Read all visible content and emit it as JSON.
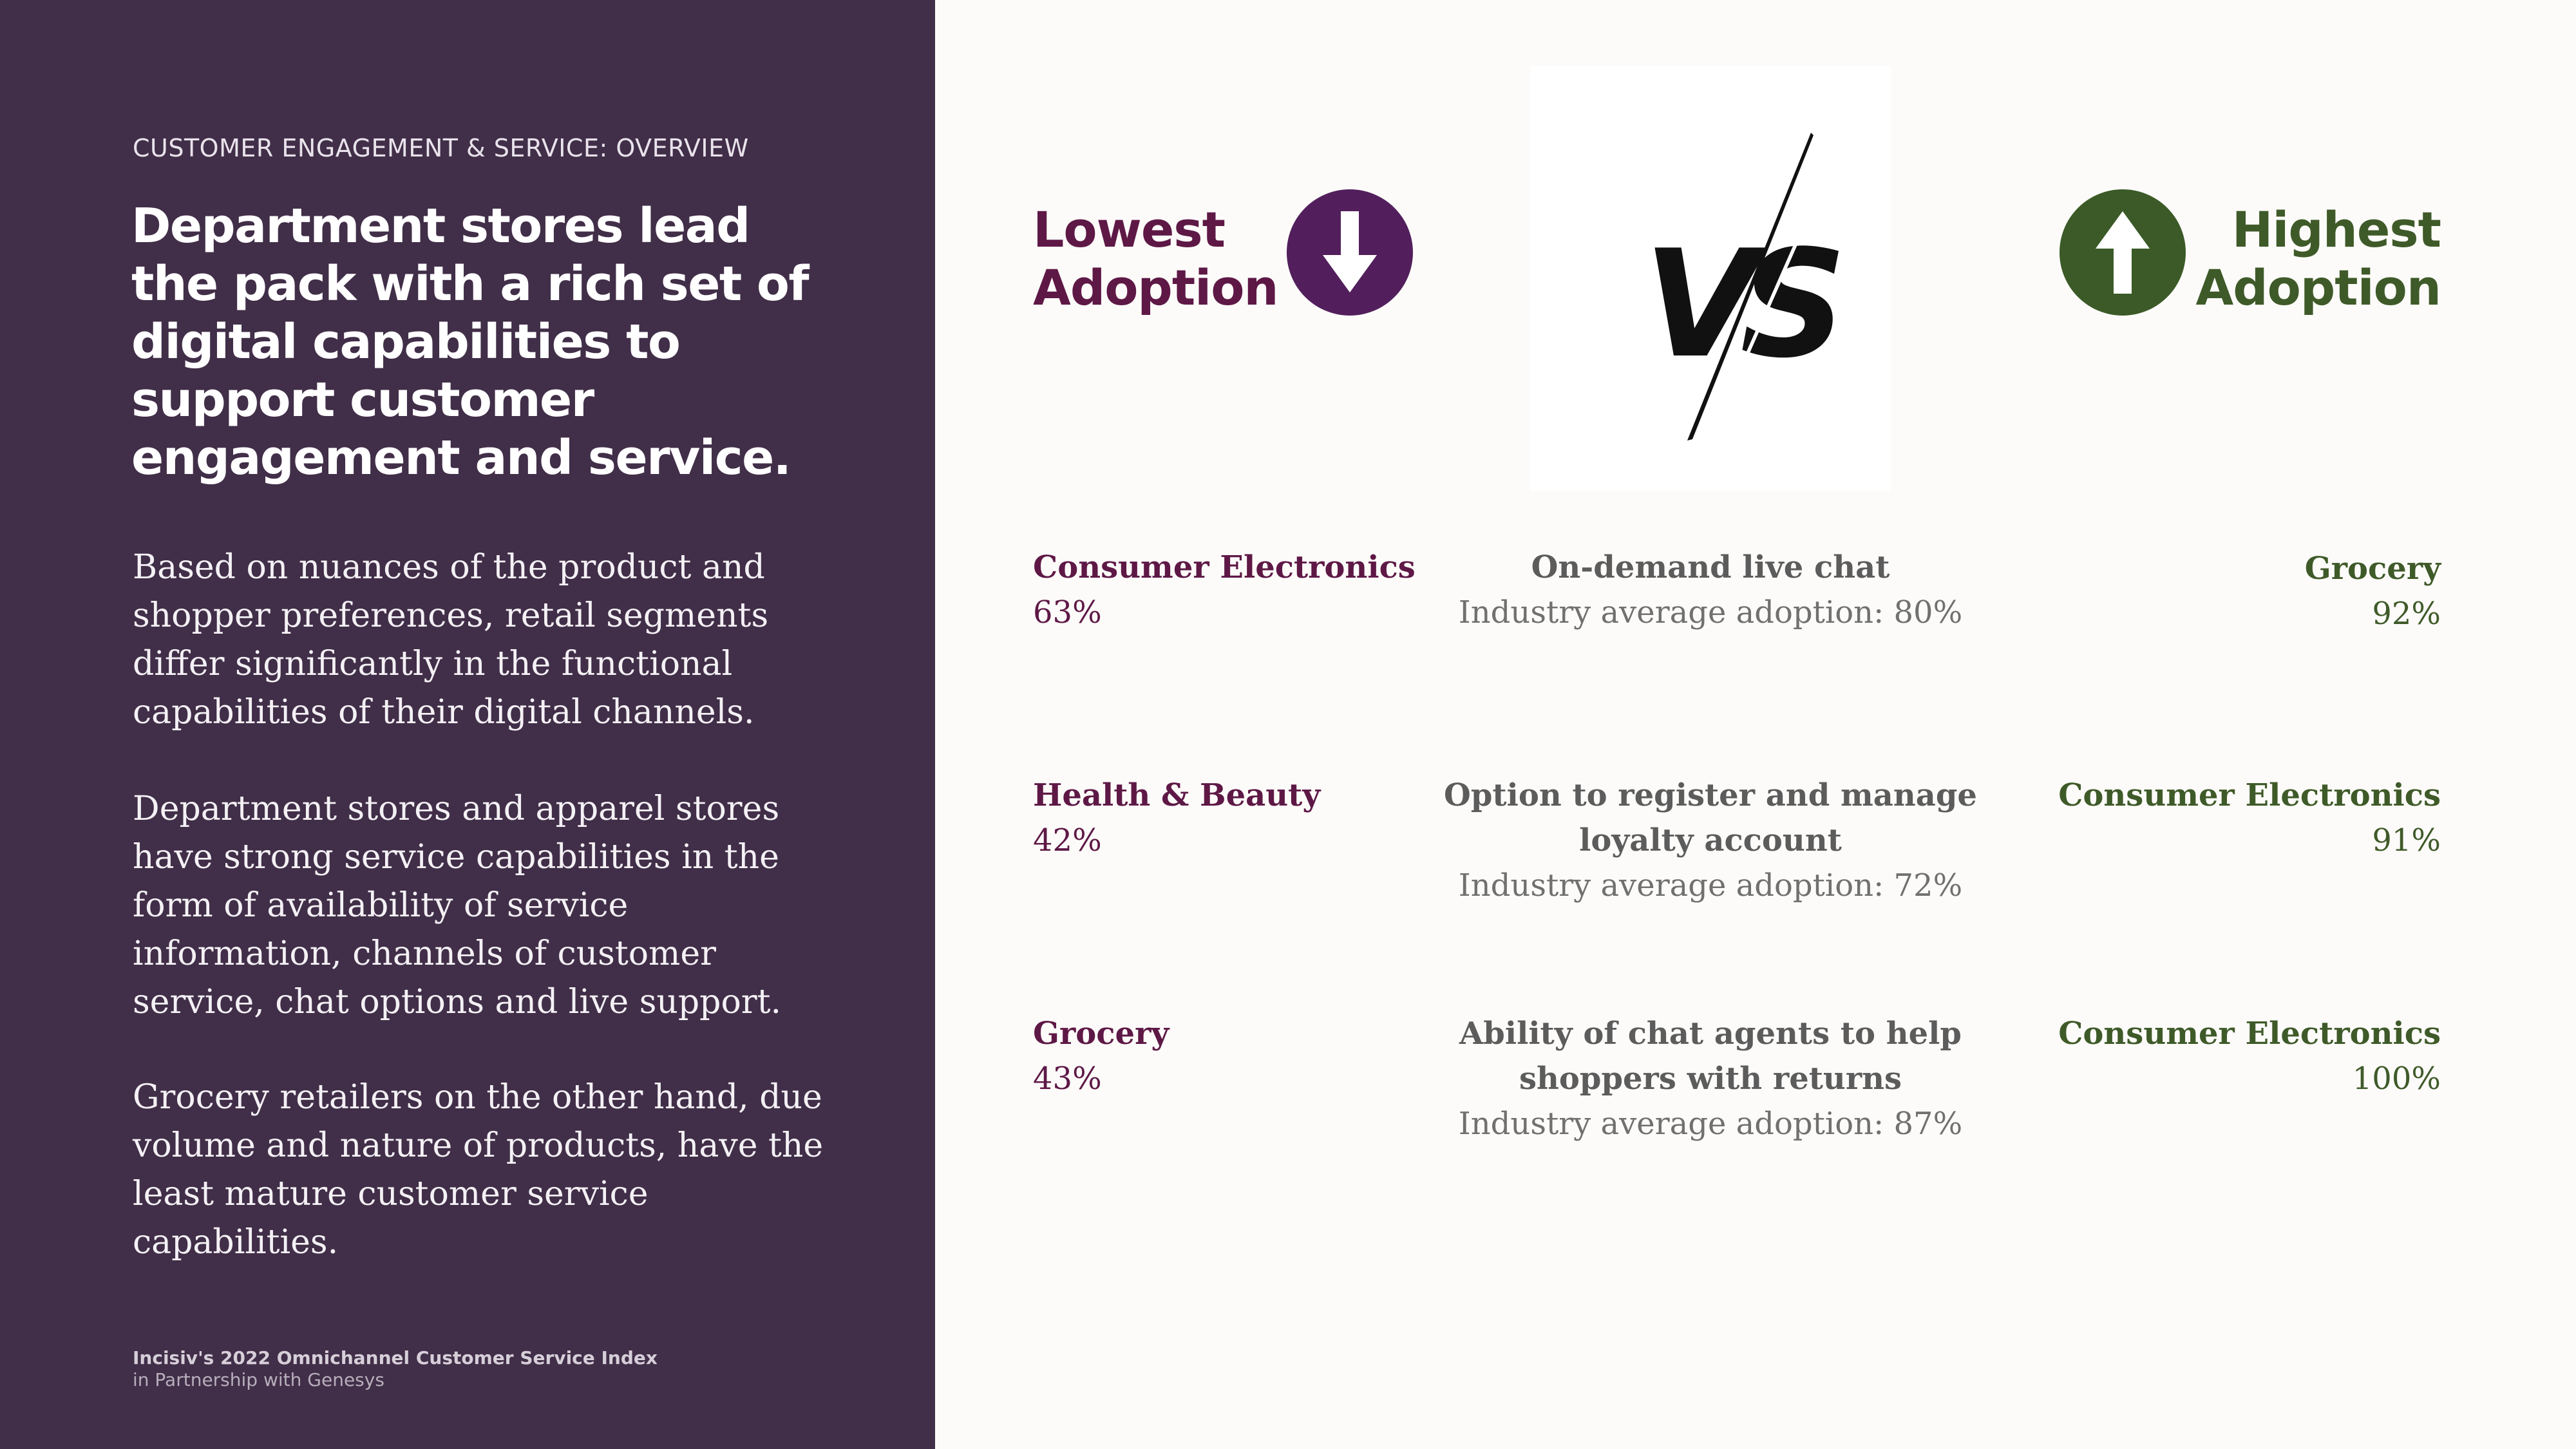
{
  "left_panel": {
    "eyebrow": "CUSTOMER ENGAGEMENT & SERVICE: OVERVIEW",
    "headline": "Department stores lead the pack with a rich set of digital capabilities to support customer engagement and service.",
    "paragraphs": [
      "Based on nuances of the product and shopper preferences, retail segments differ significantly in the functional capabilities of their digital channels.",
      "Department stores and apparel stores have strong service capabilities in the form of availability of service information, channels of customer service,  chat options and live support.",
      "Grocery retailers on the other hand, due volume and nature of products, have the least mature customer service capabilities."
    ],
    "source_line1": "Incisiv's 2022 Omnichannel Customer Service  Index",
    "source_line2": "in Partnership with Genesys"
  },
  "header": {
    "low_title_line1": "Lowest",
    "low_title_line2": "Adoption",
    "high_title_line1": "Highest",
    "high_title_line2": "Adoption",
    "down_icon": "arrow-down-circle-icon",
    "up_icon": "arrow-up-circle-icon",
    "vs_icon": "versus-icon"
  },
  "rows": [
    {
      "low_segment": "Consumer Electronics",
      "low_value": "63%",
      "capability_lines": [
        "On-demand live chat"
      ],
      "industry_average": "Industry average adoption: 80%",
      "high_segment": "Grocery",
      "high_value": "92%"
    },
    {
      "low_segment": "Health & Beauty",
      "low_value": "42%",
      "capability_lines": [
        "Option to register and manage",
        "loyalty account"
      ],
      "industry_average": "Industry average adoption: 72%",
      "high_segment": "Consumer Electronics",
      "high_value": "91%"
    },
    {
      "low_segment": "Grocery",
      "low_value": "43%",
      "capability_lines": [
        "Ability of chat agents to help",
        "shoppers with returns"
      ],
      "industry_average": "Industry average adoption: 87%",
      "high_segment": "Consumer Electronics",
      "high_value": "100%"
    }
  ],
  "colors": {
    "left_panel_bg": "#412e48",
    "low_accent": "#5e1846",
    "high_accent": "#3f5a29"
  }
}
